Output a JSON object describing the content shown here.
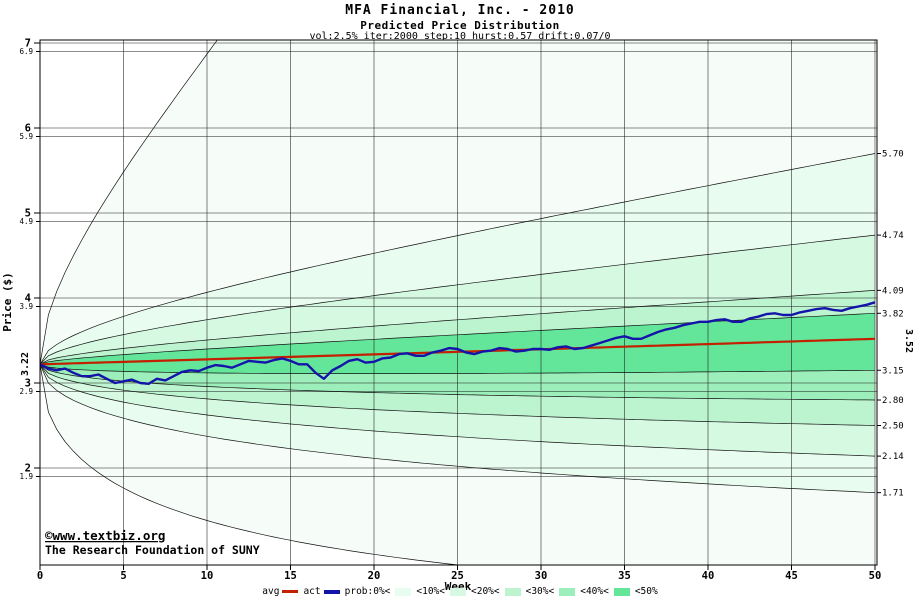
{
  "chart_data": {
    "type": "line",
    "title": "MFA Financial, Inc. - 2010",
    "subtitle": "Predicted Price Distribution",
    "params_line": "vol:2.5% iter:2000 step:10 hurst:0.57 drift:0.07/0",
    "xlabel": "Week",
    "ylabel": "Price ($)",
    "xlim": [
      0,
      50
    ],
    "ylim": [
      0.86,
      7.04
    ],
    "x_ticks": [
      0,
      5,
      10,
      15,
      20,
      25,
      30,
      35,
      40,
      45,
      50
    ],
    "y_ticks_major": [
      2,
      3,
      4,
      5,
      6,
      7
    ],
    "y_ticks_minor": [
      1.9,
      2.9,
      3.9,
      4.9,
      5.9,
      6.9
    ],
    "grid": true,
    "start_price": 3.22,
    "start_price_label": "3.22",
    "series": [
      {
        "name": "avg",
        "color": "#c22000",
        "start": 3.22,
        "end": 3.52,
        "end_label": "3.52"
      },
      {
        "name": "act",
        "color": "#1414aa",
        "x_step": 0.5,
        "values": [
          3.22,
          3.17,
          3.15,
          3.17,
          3.12,
          3.08,
          3.08,
          3.1,
          3.05,
          3.0,
          3.02,
          3.04,
          3.0,
          2.99,
          3.05,
          3.03,
          3.08,
          3.13,
          3.15,
          3.14,
          3.18,
          3.21,
          3.2,
          3.18,
          3.22,
          3.26,
          3.25,
          3.24,
          3.27,
          3.29,
          3.26,
          3.22,
          3.22,
          3.12,
          3.05,
          3.15,
          3.2,
          3.26,
          3.28,
          3.24,
          3.25,
          3.29,
          3.3,
          3.34,
          3.35,
          3.32,
          3.32,
          3.36,
          3.38,
          3.41,
          3.4,
          3.36,
          3.34,
          3.37,
          3.38,
          3.41,
          3.4,
          3.37,
          3.38,
          3.4,
          3.4,
          3.39,
          3.42,
          3.43,
          3.4,
          3.41,
          3.44,
          3.47,
          3.5,
          3.53,
          3.55,
          3.52,
          3.52,
          3.56,
          3.6,
          3.63,
          3.65,
          3.68,
          3.7,
          3.72,
          3.72,
          3.74,
          3.75,
          3.72,
          3.72,
          3.76,
          3.78,
          3.81,
          3.82,
          3.8,
          3.8,
          3.83,
          3.85,
          3.87,
          3.88,
          3.86,
          3.85,
          3.88,
          3.9,
          3.92,
          3.95
        ]
      }
    ],
    "bands": {
      "edge_color": "#111111",
      "quantiles_upper_end": [
        5.7,
        4.74,
        4.09,
        3.82
      ],
      "quantiles_lower_end": [
        1.71,
        2.14,
        2.5,
        2.8,
        3.15
      ],
      "right_labels": [
        {
          "value": 5.7,
          "text": "5.70"
        },
        {
          "value": 4.74,
          "text": "4.74"
        },
        {
          "value": 4.09,
          "text": "4.09"
        },
        {
          "value": 3.82,
          "text": "3.82"
        },
        {
          "value": 3.15,
          "text": "3.15"
        },
        {
          "value": 2.8,
          "text": "2.80"
        },
        {
          "value": 2.5,
          "text": "2.50"
        },
        {
          "value": 2.14,
          "text": "2.14"
        },
        {
          "value": 1.71,
          "text": "1.71"
        }
      ],
      "fills_outer_to_inner": [
        "#f6fdf8",
        "#e9fcf0",
        "#d6f9e2",
        "#bcf4d0",
        "#9cefba",
        "#63e699"
      ],
      "envelope": {
        "k_top": 0.234,
        "k_bot": 0.273
      }
    }
  },
  "legend": {
    "avg_label": "avg",
    "act_label": "act",
    "prob_labels": [
      "prob:0%<",
      "<10%<",
      "<20%<",
      "<30%<",
      "<40%<",
      "<50%"
    ],
    "swatch_colors": [
      "#e9fcf0",
      "#d6f9e2",
      "#bcf4d0",
      "#9cefba",
      "#63e699"
    ]
  },
  "copyright": {
    "line1": "©www.textbiz.org",
    "line2": "The Research Foundation of SUNY",
    "color": "#0000cc"
  }
}
